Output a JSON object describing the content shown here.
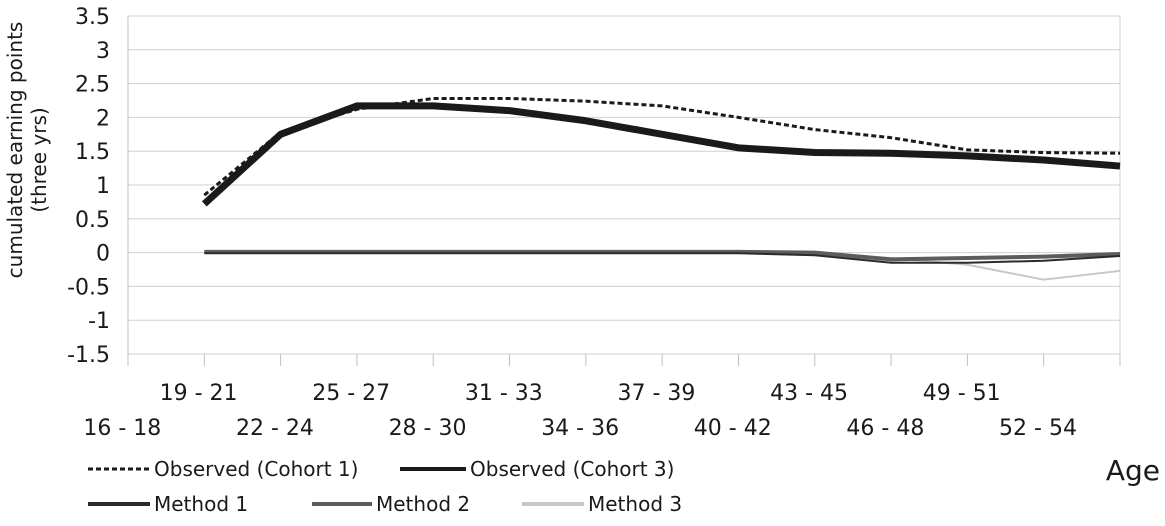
{
  "chart_data": {
    "type": "line",
    "title": "",
    "ylabel_lines": [
      "cumulated earning points",
      "(three yrs)"
    ],
    "xlabel": "Age",
    "ylim": [
      -1.5,
      3.5
    ],
    "yticks": [
      "3.5",
      "3",
      "2.5",
      "2",
      "1.5",
      "1",
      "0.5",
      "0",
      "-0.5",
      "-1",
      "-1.5"
    ],
    "ytick_values": [
      3.5,
      3,
      2.5,
      2,
      1.5,
      1,
      0.5,
      0,
      -0.5,
      -1,
      -1.5
    ],
    "grid": true,
    "legend_placement": "bottom",
    "categories": [
      "16 - 18",
      "19 - 21",
      "22 - 24",
      "25 - 27",
      "28 - 30",
      "31 - 33",
      "34 - 36",
      "37 - 39",
      "40 - 42",
      "43 - 45",
      "46 - 48",
      "49 - 51",
      "52 - 54"
    ],
    "series": [
      {
        "name": "Observed (Cohort 1)",
        "color": "#1a1a1a",
        "style": "dotted",
        "values": [
          0.85,
          1.78,
          2.12,
          2.28,
          2.28,
          2.24,
          2.17,
          2.0,
          1.82,
          1.7,
          1.52,
          1.48,
          1.47
        ]
      },
      {
        "name": "Observed (Cohort 3)",
        "color": "#1a1a1a",
        "style": "bold",
        "values": [
          0.72,
          1.75,
          2.17,
          2.17,
          2.1,
          1.95,
          1.75,
          1.55,
          1.48,
          1.47,
          1.43,
          1.37,
          1.28
        ]
      },
      {
        "name": "Method 1",
        "color": "#2b2b2b",
        "style": "thin",
        "values": [
          -0.01,
          -0.01,
          -0.01,
          -0.01,
          -0.01,
          -0.01,
          -0.01,
          -0.01,
          -0.04,
          -0.15,
          -0.15,
          -0.12,
          -0.05
        ]
      },
      {
        "name": "Method 2",
        "color": "#5c5c5c",
        "style": "solid",
        "values": [
          0.01,
          0.01,
          0.01,
          0.01,
          0.01,
          0.01,
          0.01,
          0.01,
          0.0,
          -0.1,
          -0.08,
          -0.06,
          -0.02
        ]
      },
      {
        "name": "Method 3",
        "color": "#c8c8c8",
        "style": "thin",
        "values": [
          0.0,
          0.0,
          0.0,
          0.0,
          0.0,
          0.0,
          0.0,
          0.0,
          -0.02,
          -0.08,
          -0.18,
          -0.4,
          -0.27
        ]
      }
    ]
  }
}
